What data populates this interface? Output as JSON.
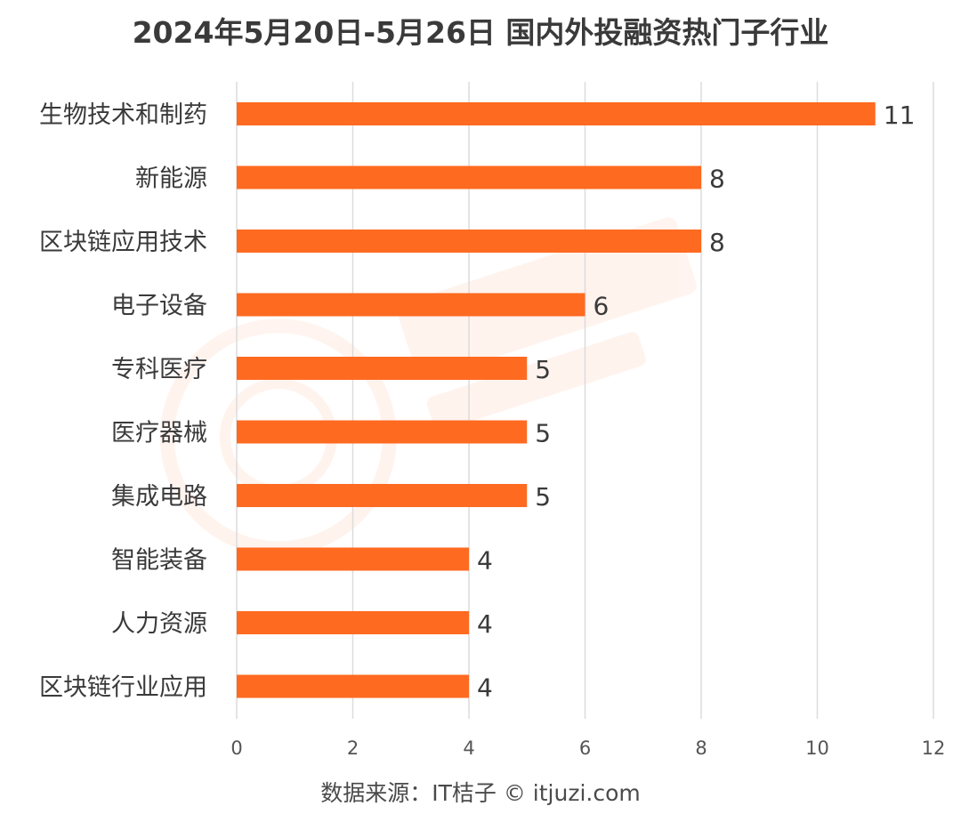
{
  "chart_data": {
    "type": "bar",
    "orientation": "horizontal",
    "title": "2024年5月20日-5月26日 国内外投融资热门子行业",
    "categories": [
      "生物技术和制药",
      "新能源",
      "区块链应用技术",
      "电子设备",
      "专科医疗",
      "医疗器械",
      "集成电路",
      "智能装备",
      "人力资源",
      "区块链行业应用"
    ],
    "values": [
      11,
      8,
      8,
      6,
      5,
      5,
      5,
      4,
      4,
      4
    ],
    "xlim": [
      0,
      12
    ],
    "xticks": [
      0,
      2,
      4,
      6,
      8,
      10,
      12
    ],
    "grid": "vertical",
    "data_labels": true
  },
  "colors": {
    "bar": "#ff6a21",
    "grid": "#dcdcdc",
    "text": "#3a3a3a",
    "tick": "#555555"
  },
  "source_text": "数据来源：IT桔子 © itjuzi.com"
}
